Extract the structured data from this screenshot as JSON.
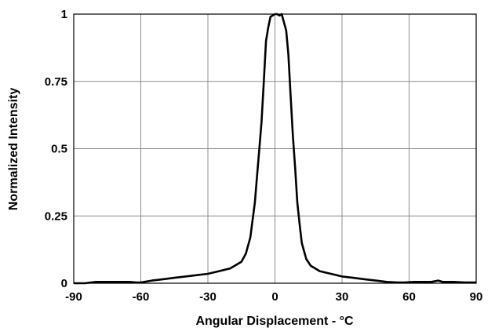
{
  "chart_data": {
    "type": "line",
    "xlabel": "Angular Displacement - °C",
    "ylabel": "Normalized Intensity",
    "xlim": [
      -90,
      90
    ],
    "ylim": [
      0,
      1
    ],
    "xticks": [
      -90,
      -60,
      -30,
      0,
      30,
      60,
      90
    ],
    "xtick_labels": [
      "-90",
      "-60",
      "-30",
      "0",
      "30",
      "60",
      "90"
    ],
    "yticks": [
      0,
      0.25,
      0.5,
      0.75,
      1
    ],
    "ytick_labels": [
      "0",
      "0.25",
      "0.5",
      "0.75",
      "1"
    ],
    "grid": true,
    "legend": "none",
    "line_color": "#000000",
    "series": [
      {
        "x": [
          -90,
          -85,
          -80,
          -70,
          -65,
          -62,
          -60,
          -55,
          -50,
          -45,
          -40,
          -35,
          -30,
          -25,
          -20,
          -18,
          -15,
          -13,
          -11,
          -9,
          -8,
          -7,
          -6,
          -5,
          -4,
          -3,
          -2,
          -1,
          0,
          1,
          2,
          3,
          4,
          5,
          6,
          7,
          8,
          9,
          10,
          11,
          12,
          14,
          16,
          18,
          20,
          25,
          30,
          35,
          40,
          45,
          50,
          55,
          58,
          62,
          70,
          73,
          75,
          78,
          80,
          85,
          90
        ],
        "y": [
          0.0,
          0.0,
          0.005,
          0.005,
          0.005,
          0.003,
          0.003,
          0.01,
          0.015,
          0.02,
          0.025,
          0.03,
          0.035,
          0.045,
          0.055,
          0.065,
          0.08,
          0.11,
          0.17,
          0.3,
          0.4,
          0.5,
          0.6,
          0.75,
          0.9,
          0.95,
          0.99,
          0.995,
          1.0,
          1.0,
          0.995,
          1.0,
          0.97,
          0.94,
          0.85,
          0.7,
          0.55,
          0.43,
          0.3,
          0.22,
          0.15,
          0.09,
          0.065,
          0.055,
          0.045,
          0.035,
          0.025,
          0.02,
          0.015,
          0.01,
          0.005,
          0.003,
          0.003,
          0.005,
          0.005,
          0.01,
          0.005,
          0.005,
          0.005,
          0.003,
          0.003
        ]
      }
    ]
  }
}
